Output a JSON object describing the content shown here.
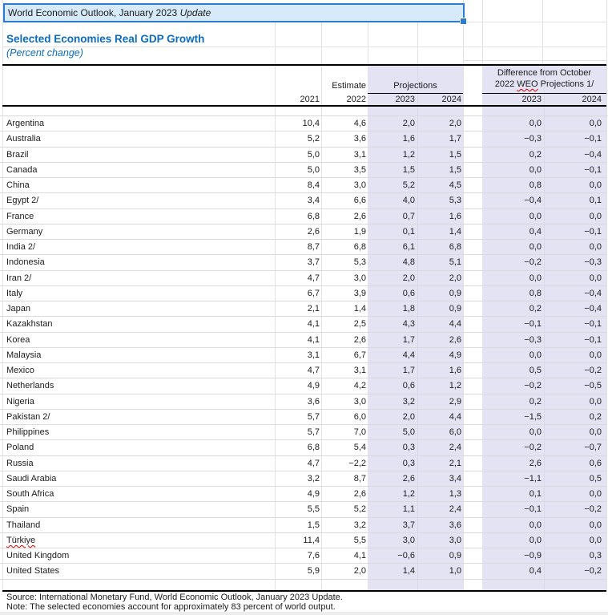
{
  "colors": {
    "selection_blue": "#2e7cd1",
    "title_cell_bg": "#d7eaf9",
    "heading_blue": "#0b6bc2",
    "shaded_column_bg": "#e3e3f4",
    "spellcheck_red": "#dd0000"
  },
  "title": {
    "text": "World Economic Outlook, January 2023 ",
    "suffix_italic": "Update"
  },
  "heading": "Selected Economies Real GDP Growth",
  "subheading": "(Percent change)",
  "table": {
    "estimate_label": "Estimate",
    "projections_label": "Projections",
    "difference_line1": "Difference from October",
    "difference_line2_pre": "2022 ",
    "difference_line2_weo": "WEO",
    "difference_line2_post": " Projections 1/",
    "years": [
      "2021",
      "2022",
      "2023",
      "2024",
      "2023",
      "2024"
    ],
    "rows": [
      {
        "country": "Argentina",
        "values": [
          "10,4",
          "4,6",
          "2,0",
          "2,0",
          "0,0",
          "0,0"
        ]
      },
      {
        "country": "Australia",
        "values": [
          "5,2",
          "3,6",
          "1,6",
          "1,7",
          "−0,3",
          "−0,1"
        ]
      },
      {
        "country": "Brazil",
        "values": [
          "5,0",
          "3,1",
          "1,2",
          "1,5",
          "0,2",
          "−0,4"
        ]
      },
      {
        "country": "Canada",
        "values": [
          "5,0",
          "3,5",
          "1,5",
          "1,5",
          "0,0",
          "−0,1"
        ]
      },
      {
        "country": "China",
        "values": [
          "8,4",
          "3,0",
          "5,2",
          "4,5",
          "0,8",
          "0,0"
        ]
      },
      {
        "country": "Egypt 2/",
        "values": [
          "3,4",
          "6,6",
          "4,0",
          "5,3",
          "−0,4",
          "0,1"
        ]
      },
      {
        "country": "France",
        "values": [
          "6,8",
          "2,6",
          "0,7",
          "1,6",
          "0,0",
          "0,0"
        ]
      },
      {
        "country": "Germany",
        "values": [
          "2,6",
          "1,9",
          "0,1",
          "1,4",
          "0,4",
          "−0,1"
        ]
      },
      {
        "country": "India 2/",
        "values": [
          "8,7",
          "6,8",
          "6,1",
          "6,8",
          "0,0",
          "0,0"
        ]
      },
      {
        "country": "Indonesia",
        "values": [
          "3,7",
          "5,3",
          "4,8",
          "5,1",
          "−0,2",
          "−0,3"
        ]
      },
      {
        "country": "Iran 2/",
        "values": [
          "4,7",
          "3,0",
          "2,0",
          "2,0",
          "0,0",
          "0,0"
        ]
      },
      {
        "country": "Italy",
        "values": [
          "6,7",
          "3,9",
          "0,6",
          "0,9",
          "0,8",
          "−0,4"
        ]
      },
      {
        "country": "Japan",
        "values": [
          "2,1",
          "1,4",
          "1,8",
          "0,9",
          "0,2",
          "−0,4"
        ]
      },
      {
        "country": "Kazakhstan",
        "values": [
          "4,1",
          "2,5",
          "4,3",
          "4,4",
          "−0,1",
          "−0,1"
        ]
      },
      {
        "country": "Korea",
        "values": [
          "4,1",
          "2,6",
          "1,7",
          "2,6",
          "−0,3",
          "−0,1"
        ]
      },
      {
        "country": "Malaysia",
        "values": [
          "3,1",
          "6,7",
          "4,4",
          "4,9",
          "0,0",
          "0,0"
        ]
      },
      {
        "country": "Mexico",
        "values": [
          "4,7",
          "3,1",
          "1,7",
          "1,6",
          "0,5",
          "−0,2"
        ]
      },
      {
        "country": "Netherlands",
        "values": [
          "4,9",
          "4,2",
          "0,6",
          "1,2",
          "−0,2",
          "−0,5"
        ]
      },
      {
        "country": "Nigeria",
        "values": [
          "3,6",
          "3,0",
          "3,2",
          "2,9",
          "0,2",
          "0,0"
        ]
      },
      {
        "country": "Pakistan 2/",
        "values": [
          "5,7",
          "6,0",
          "2,0",
          "4,4",
          "−1,5",
          "0,2"
        ]
      },
      {
        "country": "Philippines",
        "values": [
          "5,7",
          "7,0",
          "5,0",
          "6,0",
          "0,0",
          "0,0"
        ]
      },
      {
        "country": "Poland",
        "values": [
          "6,8",
          "5,4",
          "0,3",
          "2,4",
          "−0,2",
          "−0,7"
        ]
      },
      {
        "country": "Russia",
        "values": [
          "4,7",
          "−2,2",
          "0,3",
          "2,1",
          "2,6",
          "0,6"
        ]
      },
      {
        "country": "Saudi Arabia",
        "values": [
          "3,2",
          "8,7",
          "2,6",
          "3,4",
          "−1,1",
          "0,5"
        ]
      },
      {
        "country": "South Africa",
        "values": [
          "4,9",
          "2,6",
          "1,2",
          "1,3",
          "0,1",
          "0,0"
        ]
      },
      {
        "country": "Spain",
        "values": [
          "5,5",
          "5,2",
          "1,1",
          "2,4",
          "−0,1",
          "−0,2"
        ]
      },
      {
        "country": "Thailand",
        "values": [
          "1,5",
          "3,2",
          "3,7",
          "3,6",
          "0,0",
          "0,0"
        ]
      },
      {
        "country": "Türkiye",
        "misspelled": true,
        "values": [
          "11,4",
          "5,5",
          "3,0",
          "3,0",
          "0,0",
          "0,0"
        ]
      },
      {
        "country": "United Kingdom",
        "values": [
          "7,6",
          "4,1",
          "−0,6",
          "0,9",
          "−0,9",
          "0,3"
        ]
      },
      {
        "country": "United States",
        "values": [
          "5,9",
          "2,0",
          "1,4",
          "1,0",
          "0,4",
          "−0,2"
        ]
      }
    ]
  },
  "footer": {
    "source": "Source: International Monetary Fund, World Economic Outlook, January 2023 Update.",
    "note": "Note: The selected economies account for approximately 83 percent of world output."
  }
}
